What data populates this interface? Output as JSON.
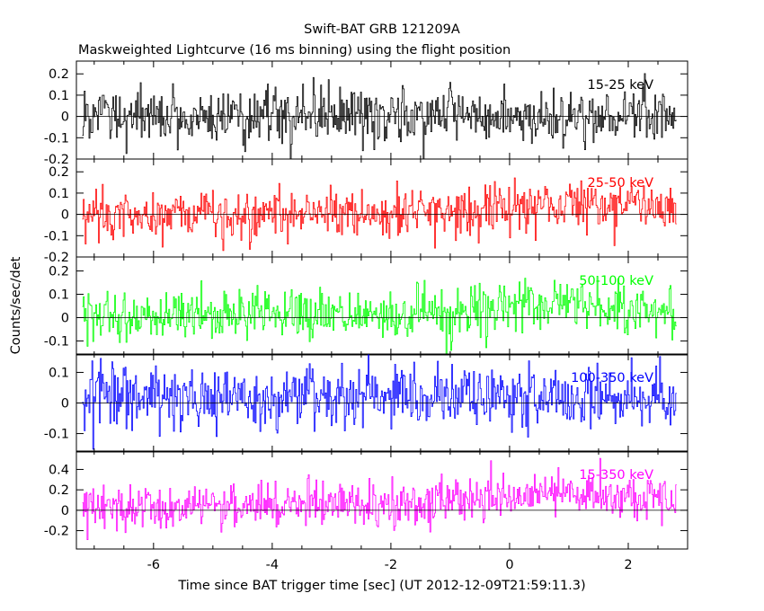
{
  "chart_data": {
    "type": "line",
    "title": "Swift-BAT GRB 121209A",
    "subtitle": "Maskweighted Lightcurve (16 ms binning) using the flight position",
    "xlabel": "Time since BAT trigger time [sec] (UT 2012-12-09T21:59:11.3)",
    "ylabel": "Counts/sec/det",
    "xlim": [
      -7.3,
      3.0
    ],
    "x_ticks": [
      "-6",
      "-4",
      "-2",
      "0",
      "2"
    ],
    "x_tick_values": [
      -6,
      -4,
      -2,
      0,
      2
    ],
    "t_start": -7.2,
    "t_end": 2.82,
    "bin_sec": 0.016,
    "grid": false,
    "panels": [
      {
        "name": "15-25 keV",
        "color": "#000000",
        "ylim": [
          -0.2,
          0.26
        ],
        "y_ticks": [
          "0.2",
          "0.1",
          "0",
          "-0.1",
          "-0.2"
        ],
        "y_tick_values": [
          0.2,
          0.1,
          0,
          -0.1,
          -0.2
        ],
        "noise_sd": 0.065,
        "trend": [
          [
            -7.2,
            0.0
          ],
          [
            0,
            0.0
          ],
          [
            2.8,
            0.01
          ]
        ]
      },
      {
        "name": "25-50 keV",
        "color": "#ff0000",
        "ylim": [
          -0.2,
          0.26
        ],
        "y_ticks": [
          "0.2",
          "0.1",
          "0",
          "-0.1",
          "-0.2"
        ],
        "y_tick_values": [
          0.2,
          0.1,
          0,
          -0.1,
          -0.2
        ],
        "noise_sd": 0.06,
        "trend": [
          [
            -7.2,
            0.0
          ],
          [
            -2,
            0.0
          ],
          [
            0,
            0.03
          ],
          [
            1,
            0.05
          ],
          [
            2.8,
            0.02
          ]
        ]
      },
      {
        "name": "50-100 keV",
        "color": "#00ff00",
        "ylim": [
          -0.16,
          0.26
        ],
        "y_ticks": [
          "0.2",
          "0.1",
          "0",
          "-0.1"
        ],
        "y_tick_values": [
          0.2,
          0.1,
          0,
          -0.1
        ],
        "noise_sd": 0.055,
        "trend": [
          [
            -7.2,
            0.0
          ],
          [
            -1,
            0.02
          ],
          [
            0,
            0.05
          ],
          [
            1,
            0.06
          ],
          [
            2.8,
            0.03
          ]
        ]
      },
      {
        "name": "100-350 keV",
        "color": "#0000ff",
        "ylim": [
          -0.16,
          0.16
        ],
        "y_ticks": [
          "0.1",
          "0",
          "-0.1"
        ],
        "y_tick_values": [
          0.1,
          0,
          -0.1
        ],
        "noise_sd": 0.05,
        "trend": [
          [
            -7.2,
            0.03
          ],
          [
            -3,
            0.02
          ],
          [
            0,
            0.02
          ],
          [
            2.8,
            0.01
          ]
        ]
      },
      {
        "name": "15-350 keV",
        "color": "#ff00ff",
        "ylim": [
          -0.38,
          0.58
        ],
        "y_ticks": [
          "0.4",
          "0.2",
          "0",
          "-0.2"
        ],
        "y_tick_values": [
          0.4,
          0.2,
          0,
          -0.2
        ],
        "noise_sd": 0.11,
        "trend": [
          [
            -7.2,
            0.05
          ],
          [
            -2,
            0.05
          ],
          [
            0,
            0.13
          ],
          [
            1,
            0.17
          ],
          [
            2.8,
            0.08
          ]
        ]
      }
    ]
  }
}
